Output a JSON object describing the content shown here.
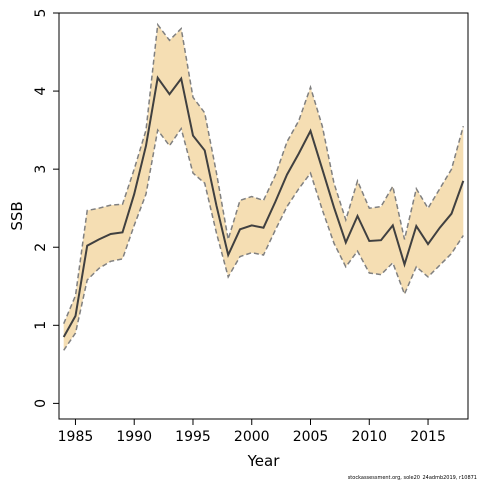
{
  "chart_data": {
    "type": "line",
    "xlabel": "Year",
    "ylabel": "SSB",
    "xlim": [
      1983.6,
      2018.4
    ],
    "ylim": [
      -0.2,
      5.0
    ],
    "x_ticks": [
      1985,
      1990,
      1995,
      2000,
      2005,
      2010,
      2015
    ],
    "y_ticks": [
      0,
      1,
      2,
      3,
      4,
      5
    ],
    "grid": false,
    "legend": "none",
    "colors": {
      "band": "#F5DEB3",
      "line": "#404040",
      "bounds": "#808080"
    },
    "credit": "stockassessment.org, sole20_24admb2019, r10871",
    "x": [
      1984,
      1985,
      1986,
      1987,
      1988,
      1989,
      1990,
      1991,
      1992,
      1993,
      1994,
      1995,
      1996,
      1997,
      1998,
      1999,
      2000,
      2001,
      2002,
      2003,
      2004,
      2005,
      2006,
      2007,
      2008,
      2009,
      2010,
      2011,
      2012,
      2013,
      2014,
      2015,
      2016,
      2017,
      2018
    ],
    "series": [
      {
        "values": [
          0.85,
          1.12,
          2.02,
          2.1,
          2.17,
          2.19,
          2.68,
          3.3,
          4.17,
          3.96,
          4.16,
          3.43,
          3.24,
          2.53,
          1.9,
          2.23,
          2.28,
          2.25,
          2.58,
          2.93,
          3.2,
          3.49,
          3.0,
          2.51,
          2.06,
          2.4,
          2.08,
          2.09,
          2.28,
          1.78,
          2.27,
          2.04,
          2.25,
          2.43,
          2.85
        ]
      },
      {
        "values": [
          1.02,
          1.38,
          2.47,
          2.5,
          2.54,
          2.55,
          3.0,
          3.5,
          4.85,
          4.65,
          4.8,
          3.92,
          3.72,
          2.95,
          2.1,
          2.6,
          2.65,
          2.6,
          2.92,
          3.35,
          3.62,
          4.05,
          3.55,
          2.82,
          2.35,
          2.85,
          2.5,
          2.52,
          2.78,
          2.1,
          2.75,
          2.5,
          2.75,
          3.0,
          3.55
        ]
      },
      {
        "values": [
          0.68,
          0.9,
          1.58,
          1.73,
          1.82,
          1.85,
          2.28,
          2.68,
          3.5,
          3.3,
          3.52,
          2.95,
          2.82,
          2.18,
          1.62,
          1.88,
          1.93,
          1.9,
          2.22,
          2.52,
          2.75,
          2.95,
          2.48,
          2.05,
          1.75,
          1.95,
          1.67,
          1.65,
          1.8,
          1.4,
          1.75,
          1.62,
          1.77,
          1.92,
          2.15
        ]
      }
    ]
  }
}
